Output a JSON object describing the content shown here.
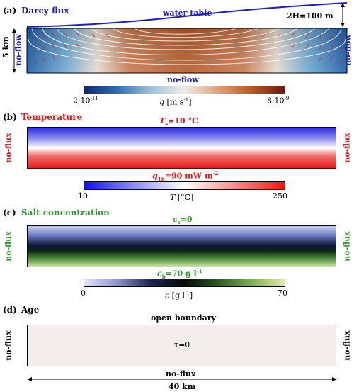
{
  "panel_a": {
    "letter": "(a)",
    "title": "Darcy flux",
    "title_color": "#1b1bb5",
    "water_table": "water table",
    "relief": "2H=100 m",
    "depth": "5 km",
    "left": "no-flow",
    "right": "no-flow",
    "bottom": "no-flow",
    "boundary_color": "#1a1ad0",
    "colorbar": {
      "min": "2·10",
      "min_exp": "-11",
      "max": "8·10",
      "max_exp": "-9",
      "label": "q",
      "unit": " [m s",
      "unit_exp": "-1",
      "unit_end": "]"
    }
  },
  "panel_b": {
    "letter": "(b)",
    "title": "Temperature",
    "title_color": "#e31a1c",
    "top": "T",
    "top_sub": "s",
    "top_value": "=10 °C",
    "left": "no-flux",
    "right": "no-flux",
    "bottom": "q",
    "bottom_sub": "Tb",
    "bottom_value": "=90 mW m",
    "bottom_exp": "-2",
    "colorbar": {
      "min": "10",
      "max": "250",
      "label": "T",
      "unit": " [°C]"
    }
  },
  "panel_c": {
    "letter": "(c)",
    "title": "Salt concentration",
    "title_color": "#2e9a2e",
    "top": "c",
    "top_sub": "s",
    "top_value": "=0",
    "left": "no-flux",
    "right": "no-flux",
    "bottom": "c",
    "bottom_sub": "b",
    "bottom_value": "=70 g l",
    "bottom_exp": "-1",
    "colorbar": {
      "min": "0",
      "max": "70",
      "label": "c",
      "unit": " [g l",
      "unit_exp": "-1",
      "unit_end": "]"
    }
  },
  "panel_d": {
    "letter": "(d)",
    "title": "Age",
    "top": "open boundary",
    "left": "no-flux",
    "right": "no-flux",
    "bottom": "no-flux",
    "center": "τ=0",
    "fill": "#f3eeec",
    "width_label": "40 km"
  }
}
